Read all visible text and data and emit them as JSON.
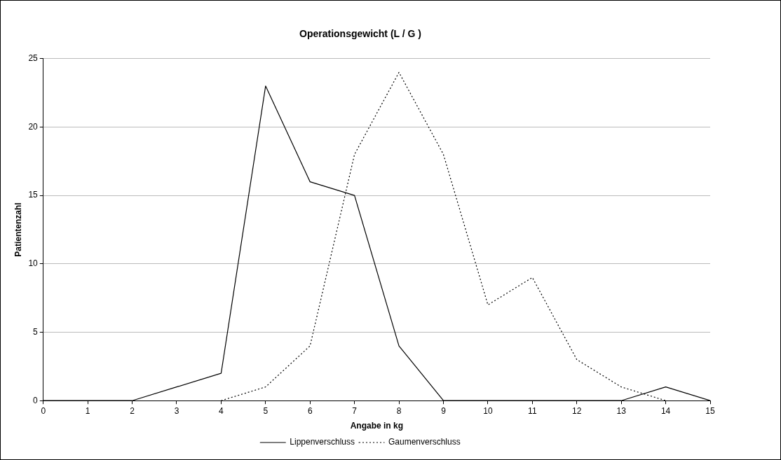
{
  "chart_data": {
    "type": "line",
    "title": "Operationsgewicht (L / G )",
    "xlabel": "Angabe in kg",
    "ylabel": "Patientenzahl",
    "x": [
      0,
      1,
      2,
      3,
      4,
      5,
      6,
      7,
      8,
      9,
      10,
      11,
      12,
      13,
      14,
      15
    ],
    "series": [
      {
        "name": "Lippenverschluss",
        "color": "#000000",
        "line_style": "solid",
        "values": [
          0,
          0,
          0,
          1,
          2,
          23,
          16,
          15,
          4,
          0,
          0,
          0,
          0,
          0,
          1,
          0
        ]
      },
      {
        "name": "Gaumenverschluss",
        "color": "#000000",
        "line_style": "dotted",
        "values": [
          null,
          null,
          null,
          null,
          0,
          1,
          4,
          18,
          24,
          18,
          7,
          9,
          3,
          1,
          0,
          null
        ]
      }
    ],
    "xlim": [
      0,
      15
    ],
    "xticks": [
      0,
      1,
      2,
      3,
      4,
      5,
      6,
      7,
      8,
      9,
      10,
      11,
      12,
      13,
      14,
      15
    ],
    "ylim": [
      0,
      25
    ],
    "yticks": [
      0,
      5,
      10,
      15,
      20,
      25
    ],
    "grid": "y",
    "legend": "bottom",
    "marker": "none"
  }
}
